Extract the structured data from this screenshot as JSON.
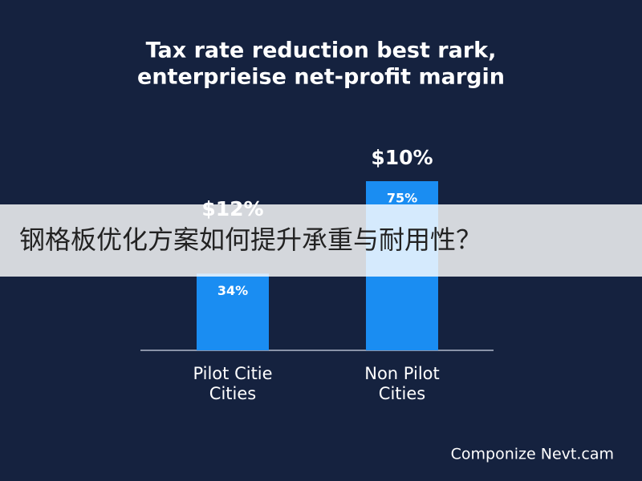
{
  "chart_data": {
    "type": "bar",
    "title": [
      "Tax rate reduction best rark,",
      "enterprieise net-profit margin"
    ],
    "categories": [
      [
        "Pilot Citie",
        "Cities"
      ],
      [
        "Non Pilot",
        "Cities"
      ]
    ],
    "values": [
      34,
      75
    ],
    "value_labels": [
      "34%",
      "75%"
    ],
    "annotations": [
      "$12%",
      "$10%"
    ],
    "color": "#1a8df2"
  },
  "overlay_caption": "钢格板优化方案如何提升承重与耐用性？",
  "footer": "Componize Nevt.cam"
}
